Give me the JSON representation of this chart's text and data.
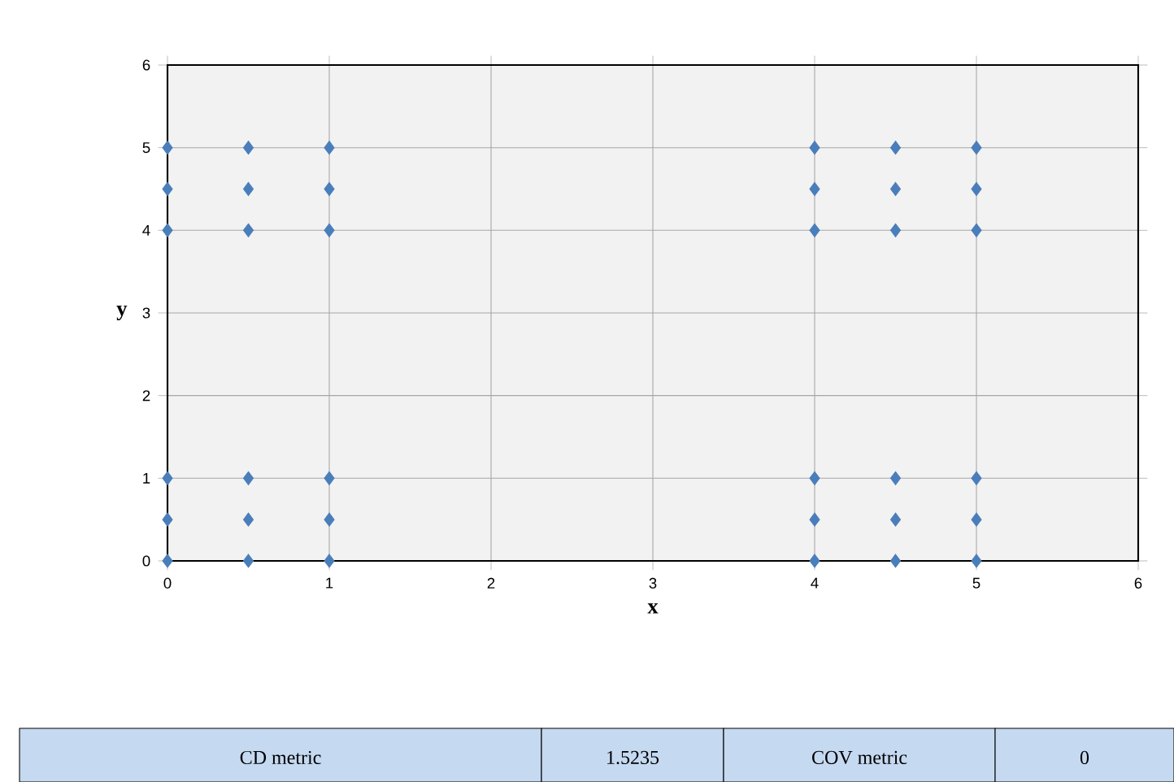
{
  "chart_data": {
    "type": "scatter",
    "xlabel": "x",
    "ylabel": "y",
    "x": [
      0,
      0,
      0,
      0.5,
      0.5,
      0.5,
      1,
      1,
      1,
      0,
      0,
      0,
      0.5,
      0.5,
      0.5,
      1,
      1,
      1,
      4,
      4,
      4,
      4.5,
      4.5,
      4.5,
      5,
      5,
      5,
      4,
      4,
      4,
      4.5,
      4.5,
      4.5,
      5,
      5,
      5
    ],
    "values": [
      0,
      0.5,
      1,
      0,
      0.5,
      1,
      0,
      0.5,
      1,
      4,
      4.5,
      5,
      4,
      4.5,
      5,
      4,
      4.5,
      5,
      0,
      0.5,
      1,
      0,
      0.5,
      1,
      0,
      0.5,
      1,
      4,
      4.5,
      5,
      4,
      4.5,
      5,
      4,
      4.5,
      5
    ],
    "color": "#4a7ebb",
    "marker": "diamond",
    "grid": true,
    "xlim": [
      0,
      6
    ],
    "ylim": [
      0,
      6
    ],
    "xticks": [
      0,
      1,
      2,
      3,
      4,
      5,
      6
    ],
    "yticks": [
      0,
      1,
      2,
      3,
      4,
      5,
      6
    ],
    "annotations": [
      "CD  metric",
      "1.5235",
      "COV metric",
      "0"
    ]
  }
}
